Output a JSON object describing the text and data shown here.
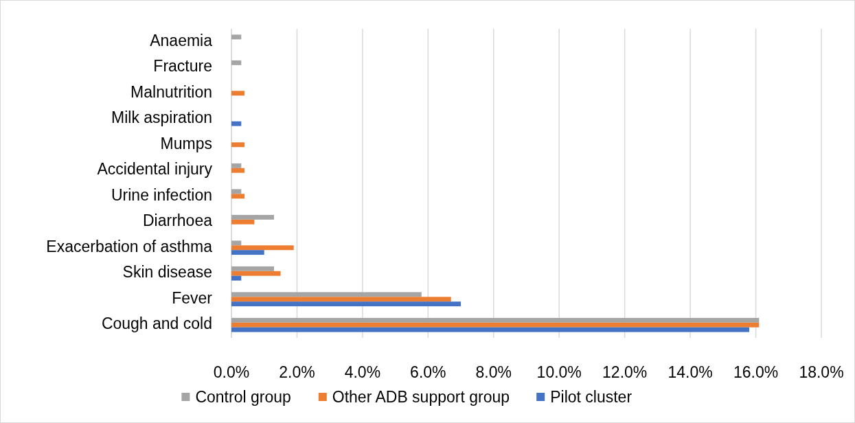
{
  "chart_data": {
    "type": "bar",
    "orientation": "horizontal",
    "categories": [
      "Anaemia",
      "Fracture",
      "Malnutrition",
      "Milk aspiration",
      "Mumps",
      "Accidental injury",
      "Urine infection",
      "Diarrhoea",
      "Exacerbation of asthma",
      "Skin disease",
      "Fever",
      "Cough and cold"
    ],
    "series": [
      {
        "name": "Control group",
        "color": "#a5a5a5",
        "values": [
          0.3,
          0.3,
          null,
          null,
          null,
          0.3,
          0.3,
          1.3,
          0.3,
          1.3,
          5.8,
          16.1
        ]
      },
      {
        "name": "Other ADB support group",
        "color": "#ed7d31",
        "values": [
          null,
          null,
          0.4,
          null,
          0.4,
          0.4,
          0.4,
          0.7,
          1.9,
          1.5,
          6.7,
          16.1
        ]
      },
      {
        "name": "Pilot cluster",
        "color": "#4472c4",
        "values": [
          null,
          null,
          null,
          0.3,
          null,
          null,
          null,
          null,
          1.0,
          0.3,
          7.0,
          15.8
        ]
      }
    ],
    "xlim": [
      0,
      18
    ],
    "xticks": [
      {
        "value": 0,
        "label": "0.0%"
      },
      {
        "value": 2,
        "label": "2.0%"
      },
      {
        "value": 4,
        "label": "4.0%"
      },
      {
        "value": 6,
        "label": "6.0%"
      },
      {
        "value": 8,
        "label": "8.0%"
      },
      {
        "value": 10,
        "label": "10.0%"
      },
      {
        "value": 12,
        "label": "12.0%"
      },
      {
        "value": 14,
        "label": "14.0%"
      },
      {
        "value": 16,
        "label": "16.0%"
      },
      {
        "value": 18,
        "label": "18.0%"
      }
    ],
    "grid": "x",
    "legend": "bottom"
  }
}
